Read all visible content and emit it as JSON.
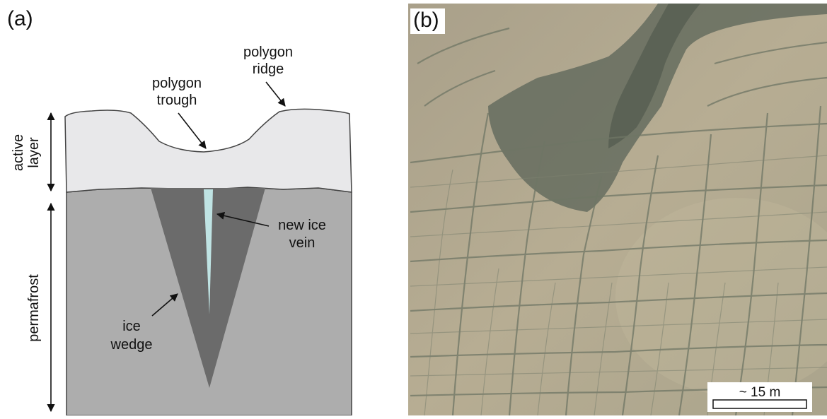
{
  "panel_a": {
    "label": "(a)",
    "annotations": {
      "polygon_ridge": [
        "polygon",
        "ridge"
      ],
      "polygon_trough": [
        "polygon",
        "trough"
      ],
      "new_ice_vein": [
        "new ice",
        "vein"
      ],
      "ice_wedge": [
        "ice",
        "wedge"
      ],
      "active_layer": [
        "active",
        "layer"
      ],
      "permafrost": "permafrost"
    },
    "colors": {
      "active_layer": "#e8e8ea",
      "permafrost": "#adadad",
      "ice_wedge": "#6b6b6b",
      "ice_vein": "#bfe3e3",
      "outline": "#444444"
    }
  },
  "panel_b": {
    "label": "(b)",
    "scale_bar": "~ 15 m",
    "colors": {
      "ground": "#b5ab92",
      "dark_channel": "#5b6458",
      "trough_lines": "#6f7665"
    }
  }
}
